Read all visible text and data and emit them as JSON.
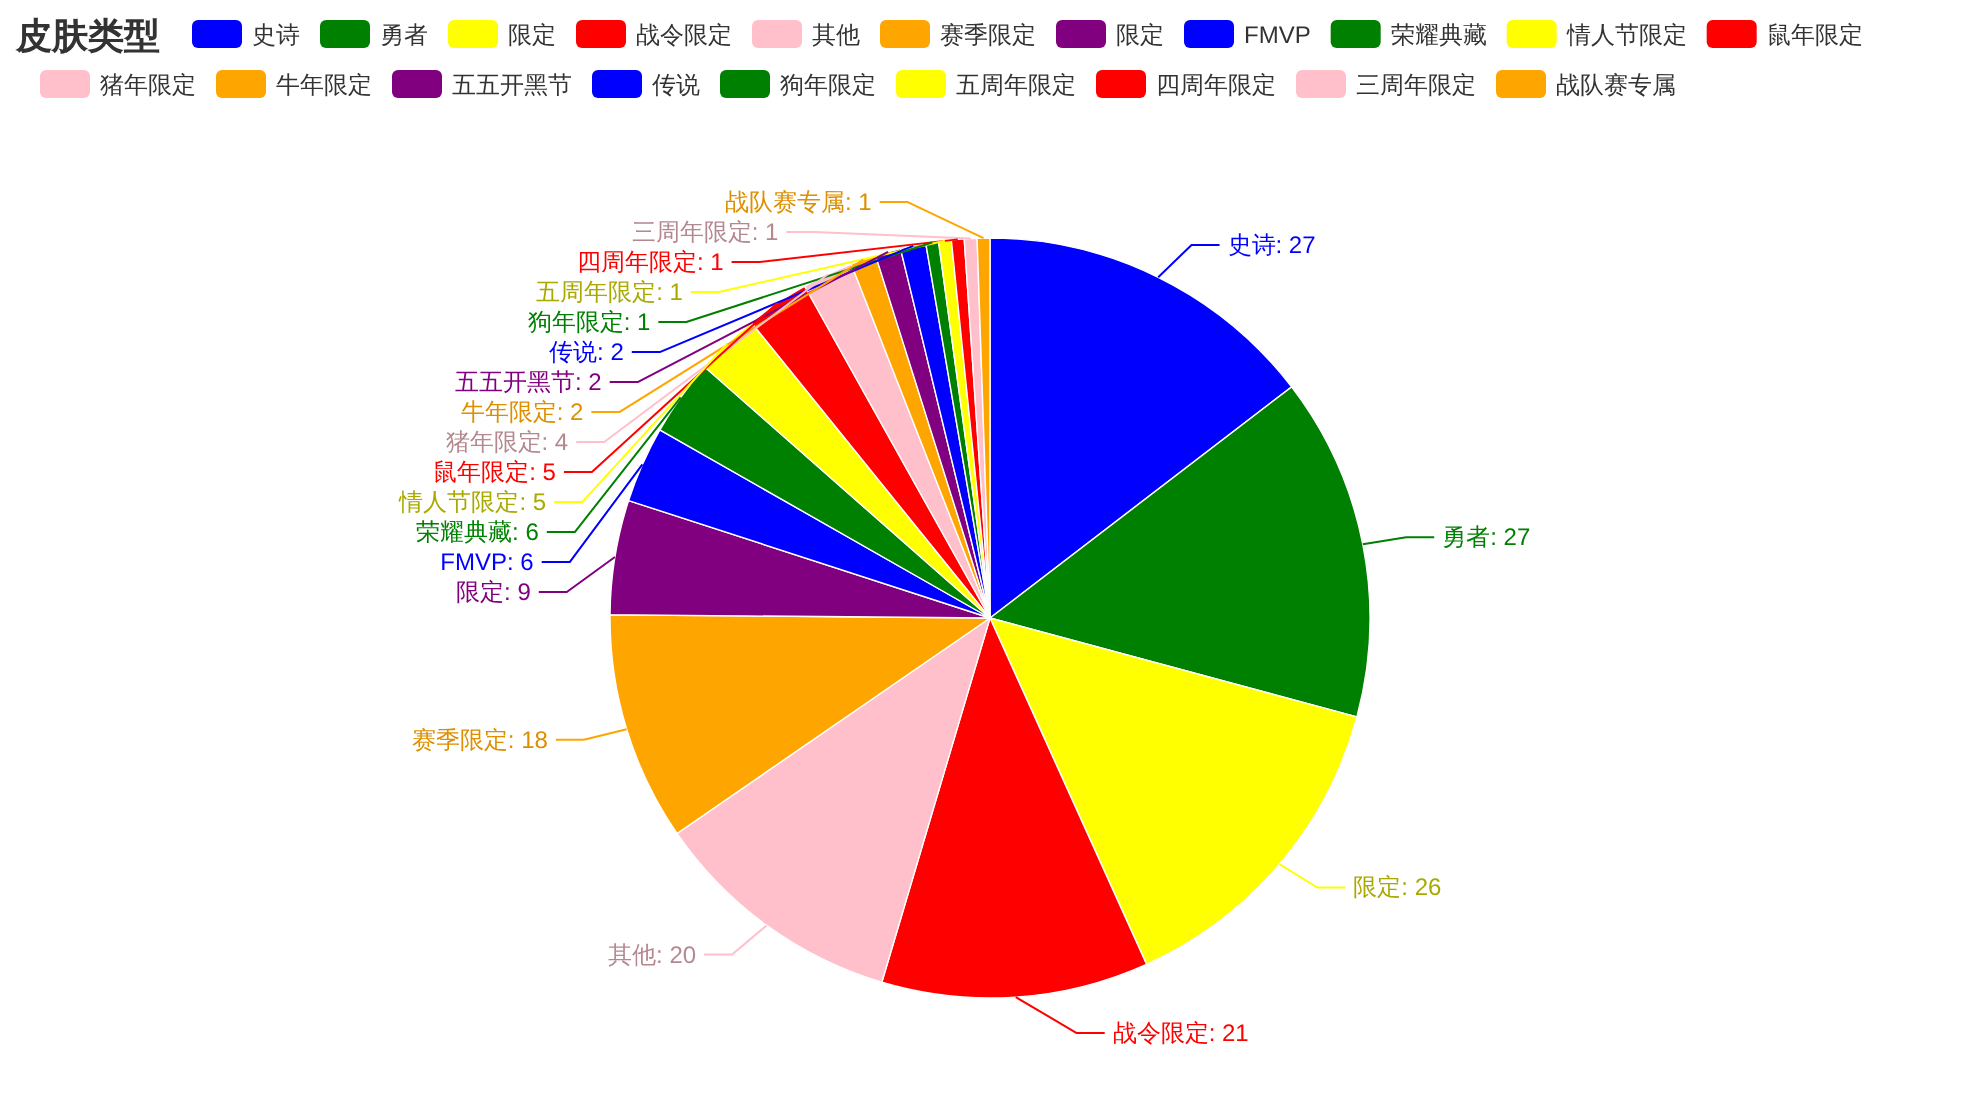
{
  "chart_data": {
    "type": "pie",
    "title": "皮肤类型",
    "legend": "top",
    "categories": [
      "史诗",
      "勇者",
      "限定",
      "战令限定",
      "其他",
      "赛季限定",
      "限定",
      "FMVP",
      "荣耀典藏",
      "情人节限定",
      "鼠年限定",
      "猪年限定",
      "牛年限定",
      "五五开黑节",
      "传说",
      "狗年限定",
      "五周年限定",
      "四周年限定",
      "三周年限定",
      "战队赛专属"
    ],
    "values": [
      27,
      27,
      26,
      21,
      20,
      18,
      9,
      6,
      6,
      5,
      5,
      4,
      2,
      2,
      2,
      1,
      1,
      1,
      1,
      1
    ],
    "value_labels": [
      "史诗: 27",
      "勇者: 27",
      "限定: 26",
      "战令限定: 21",
      "其他: 20",
      "赛季限定: 18",
      "限定: 9",
      "FMVP: 6",
      "荣耀典藏: 6",
      "情人节限定: 5",
      "鼠年限定: 5",
      "猪年限定: 4",
      "牛年限定: 2",
      "五五开黑节: 2",
      "传说: 2",
      "狗年限定: 1",
      "五周年限定: 1",
      "四周年限定: 1",
      "三周年限定: 1",
      "战队赛专属: 1"
    ],
    "colors": [
      "#0000ff",
      "#008000",
      "#ffff00",
      "#ff0000",
      "#ffc0cb",
      "#ffa500",
      "#800080",
      "#0000ff",
      "#008000",
      "#ffff00",
      "#ff0000",
      "#ffc0cb",
      "#ffa500",
      "#800080",
      "#0000ff",
      "#008000",
      "#ffff00",
      "#ff0000",
      "#ffc0cb",
      "#ffa500"
    ]
  }
}
